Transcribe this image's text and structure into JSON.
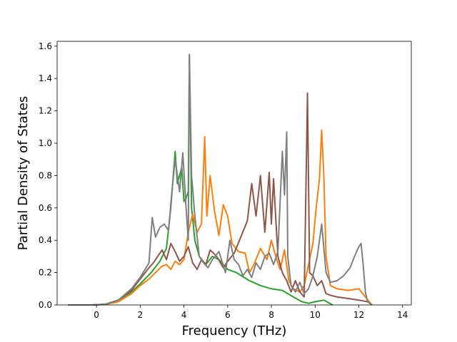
{
  "chart_data": {
    "type": "line",
    "title": "",
    "xlabel": "Frequency (THz)",
    "ylabel": "Partial Density of States",
    "xlim": [
      -1.8,
      14.4
    ],
    "ylim": [
      0.0,
      1.63
    ],
    "xticks": [
      0,
      2,
      4,
      6,
      8,
      10,
      12,
      14
    ],
    "yticks": [
      0.0,
      0.2,
      0.4,
      0.6,
      0.8,
      1.0,
      1.2,
      1.4,
      1.6
    ],
    "grid": false,
    "legend": "none",
    "series": [
      {
        "color": "#2ca02c",
        "points": [
          [
            -1.3,
            0
          ],
          [
            -0.2,
            0
          ],
          [
            0.4,
            0.005
          ],
          [
            1.0,
            0.03
          ],
          [
            1.6,
            0.08
          ],
          [
            2.0,
            0.13
          ],
          [
            2.5,
            0.2
          ],
          [
            2.9,
            0.27
          ],
          [
            3.2,
            0.35
          ],
          [
            3.4,
            0.6
          ],
          [
            3.6,
            0.95
          ],
          [
            3.7,
            0.75
          ],
          [
            3.9,
            0.85
          ],
          [
            4.0,
            0.64
          ],
          [
            4.1,
            0.66
          ],
          [
            4.2,
            0.7
          ],
          [
            4.25,
            1.54
          ],
          [
            4.35,
            0.6
          ],
          [
            4.5,
            0.4
          ],
          [
            4.7,
            0.3
          ],
          [
            5.0,
            0.25
          ],
          [
            5.3,
            0.3
          ],
          [
            5.6,
            0.28
          ],
          [
            6.0,
            0.22
          ],
          [
            6.4,
            0.2
          ],
          [
            7.0,
            0.15
          ],
          [
            7.5,
            0.12
          ],
          [
            8.0,
            0.1
          ],
          [
            8.5,
            0.09
          ],
          [
            9.0,
            0.05
          ],
          [
            9.4,
            0.02
          ],
          [
            9.7,
            0.01
          ],
          [
            10.0,
            0.02
          ],
          [
            10.4,
            0.03
          ],
          [
            10.8,
            0
          ]
        ]
      },
      {
        "color": "#ff7f0e",
        "points": [
          [
            -1.3,
            0
          ],
          [
            -0.2,
            0
          ],
          [
            0.4,
            0.003
          ],
          [
            1.0,
            0.02
          ],
          [
            1.6,
            0.07
          ],
          [
            2.0,
            0.12
          ],
          [
            2.4,
            0.16
          ],
          [
            2.7,
            0.2
          ],
          [
            3.0,
            0.24
          ],
          [
            3.2,
            0.25
          ],
          [
            3.4,
            0.22
          ],
          [
            3.6,
            0.27
          ],
          [
            3.8,
            0.25
          ],
          [
            4.0,
            0.28
          ],
          [
            4.2,
            0.45
          ],
          [
            4.4,
            0.56
          ],
          [
            4.6,
            0.45
          ],
          [
            4.8,
            0.5
          ],
          [
            4.95,
            1.04
          ],
          [
            5.05,
            0.55
          ],
          [
            5.2,
            0.8
          ],
          [
            5.4,
            0.58
          ],
          [
            5.6,
            0.43
          ],
          [
            5.8,
            0.62
          ],
          [
            6.0,
            0.55
          ],
          [
            6.2,
            0.38
          ],
          [
            6.5,
            0.33
          ],
          [
            6.8,
            0.32
          ],
          [
            7.0,
            0.2
          ],
          [
            7.2,
            0.25
          ],
          [
            7.5,
            0.35
          ],
          [
            7.8,
            0.28
          ],
          [
            8.0,
            0.4
          ],
          [
            8.2,
            0.3
          ],
          [
            8.4,
            0.22
          ],
          [
            8.6,
            0.34
          ],
          [
            8.8,
            0.15
          ],
          [
            9.0,
            0.1
          ],
          [
            9.3,
            0.08
          ],
          [
            9.5,
            0.12
          ],
          [
            9.7,
            0.25
          ],
          [
            9.9,
            0.38
          ],
          [
            10.05,
            0.6
          ],
          [
            10.2,
            0.78
          ],
          [
            10.3,
            1.08
          ],
          [
            10.4,
            0.8
          ],
          [
            10.5,
            0.3
          ],
          [
            10.7,
            0.12
          ],
          [
            11.0,
            0.1
          ],
          [
            11.5,
            0.09
          ],
          [
            12.0,
            0.1
          ],
          [
            12.3,
            0.05
          ],
          [
            12.6,
            0
          ]
        ]
      },
      {
        "color": "#8c564b",
        "points": [
          [
            -1.3,
            0
          ],
          [
            -0.2,
            0
          ],
          [
            0.4,
            0.003
          ],
          [
            1.0,
            0.03
          ],
          [
            1.6,
            0.09
          ],
          [
            2.0,
            0.16
          ],
          [
            2.4,
            0.23
          ],
          [
            2.6,
            0.26
          ],
          [
            2.8,
            0.3
          ],
          [
            3.0,
            0.34
          ],
          [
            3.2,
            0.28
          ],
          [
            3.4,
            0.38
          ],
          [
            3.6,
            0.33
          ],
          [
            3.8,
            0.27
          ],
          [
            4.0,
            0.3
          ],
          [
            4.2,
            0.36
          ],
          [
            4.4,
            0.26
          ],
          [
            4.6,
            0.22
          ],
          [
            4.8,
            0.28
          ],
          [
            5.0,
            0.25
          ],
          [
            5.2,
            0.34
          ],
          [
            5.5,
            0.3
          ],
          [
            5.8,
            0.23
          ],
          [
            6.0,
            0.27
          ],
          [
            6.3,
            0.32
          ],
          [
            6.6,
            0.42
          ],
          [
            6.9,
            0.52
          ],
          [
            7.1,
            0.75
          ],
          [
            7.3,
            0.55
          ],
          [
            7.5,
            0.8
          ],
          [
            7.7,
            0.45
          ],
          [
            7.9,
            0.82
          ],
          [
            8.0,
            0.5
          ],
          [
            8.1,
            0.78
          ],
          [
            8.3,
            0.3
          ],
          [
            8.5,
            0.2
          ],
          [
            8.7,
            0.15
          ],
          [
            8.9,
            0.08
          ],
          [
            9.1,
            0.15
          ],
          [
            9.3,
            0.08
          ],
          [
            9.5,
            0.05
          ],
          [
            9.65,
            1.31
          ],
          [
            9.75,
            0.2
          ],
          [
            9.9,
            0.18
          ],
          [
            10.1,
            0.12
          ],
          [
            10.3,
            0.15
          ],
          [
            10.5,
            0.07
          ],
          [
            10.7,
            0.06
          ],
          [
            11.0,
            0.05
          ],
          [
            11.5,
            0.04
          ],
          [
            12.0,
            0.03
          ],
          [
            12.4,
            0.02
          ],
          [
            12.6,
            0
          ]
        ]
      },
      {
        "color": "#7f7f7f",
        "points": [
          [
            -1.3,
            0
          ],
          [
            -0.2,
            0
          ],
          [
            0.4,
            0.004
          ],
          [
            1.0,
            0.03
          ],
          [
            1.6,
            0.1
          ],
          [
            2.0,
            0.17
          ],
          [
            2.4,
            0.26
          ],
          [
            2.55,
            0.54
          ],
          [
            2.7,
            0.42
          ],
          [
            2.9,
            0.48
          ],
          [
            3.1,
            0.5
          ],
          [
            3.3,
            0.46
          ],
          [
            3.45,
            0.7
          ],
          [
            3.6,
            0.9
          ],
          [
            3.8,
            0.7
          ],
          [
            3.95,
            0.94
          ],
          [
            4.1,
            0.6
          ],
          [
            4.2,
            0.4
          ],
          [
            4.25,
            1.55
          ],
          [
            4.35,
            0.8
          ],
          [
            4.5,
            0.55
          ],
          [
            4.7,
            0.3
          ],
          [
            4.9,
            0.26
          ],
          [
            5.1,
            0.23
          ],
          [
            5.3,
            0.28
          ],
          [
            5.6,
            0.33
          ],
          [
            5.9,
            0.2
          ],
          [
            6.1,
            0.4
          ],
          [
            6.3,
            0.28
          ],
          [
            6.5,
            0.25
          ],
          [
            6.7,
            0.18
          ],
          [
            6.9,
            0.22
          ],
          [
            7.1,
            0.17
          ],
          [
            7.3,
            0.26
          ],
          [
            7.5,
            0.22
          ],
          [
            7.7,
            0.3
          ],
          [
            7.9,
            0.32
          ],
          [
            8.1,
            0.25
          ],
          [
            8.3,
            0.33
          ],
          [
            8.5,
            0.95
          ],
          [
            8.6,
            0.68
          ],
          [
            8.7,
            1.07
          ],
          [
            8.75,
            0.3
          ],
          [
            8.9,
            0.12
          ],
          [
            9.1,
            0.08
          ],
          [
            9.3,
            0.14
          ],
          [
            9.5,
            0.07
          ],
          [
            9.7,
            0.1
          ],
          [
            9.9,
            0.18
          ],
          [
            10.1,
            0.3
          ],
          [
            10.3,
            0.5
          ],
          [
            10.5,
            0.2
          ],
          [
            10.7,
            0.14
          ],
          [
            11.0,
            0.15
          ],
          [
            11.3,
            0.18
          ],
          [
            11.6,
            0.23
          ],
          [
            11.8,
            0.3
          ],
          [
            12.0,
            0.36
          ],
          [
            12.1,
            0.38
          ],
          [
            12.2,
            0.25
          ],
          [
            12.3,
            0.08
          ],
          [
            12.4,
            0.02
          ],
          [
            12.6,
            0
          ]
        ]
      }
    ]
  }
}
